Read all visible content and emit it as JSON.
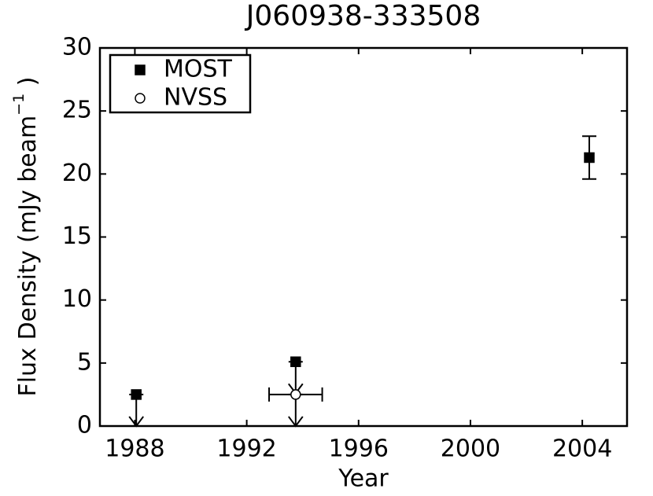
{
  "chart_data": {
    "type": "scatter",
    "title": "J060938-333508",
    "xlabel": "Year",
    "ylabel": "Flux Density (mJy beam",
    "ylabel_sup": "−1",
    "ylabel_end": " )",
    "xlim": [
      1986.75,
      2005.6
    ],
    "xticks": [
      1988,
      1992,
      1996,
      2000,
      2004
    ],
    "ylim": [
      0,
      30
    ],
    "yticks": [
      0,
      5,
      10,
      15,
      20,
      25,
      30
    ],
    "legend": "upper left",
    "series": [
      {
        "name": "MOST",
        "marker": "square",
        "color": "#000000",
        "x": [
          1988.05,
          1993.75,
          2004.25
        ],
        "values": [
          2.5,
          5.1,
          21.3
        ],
        "errors": [
          null,
          null,
          1.7
        ],
        "upper_limit": [
          true,
          true,
          false
        ]
      },
      {
        "name": "NVSS",
        "marker": "circle",
        "color": "#ffffff",
        "x": [
          1993.75
        ],
        "values": [
          2.5
        ],
        "x_errors": [
          0.95
        ],
        "upper_limit": [
          true
        ]
      }
    ]
  }
}
